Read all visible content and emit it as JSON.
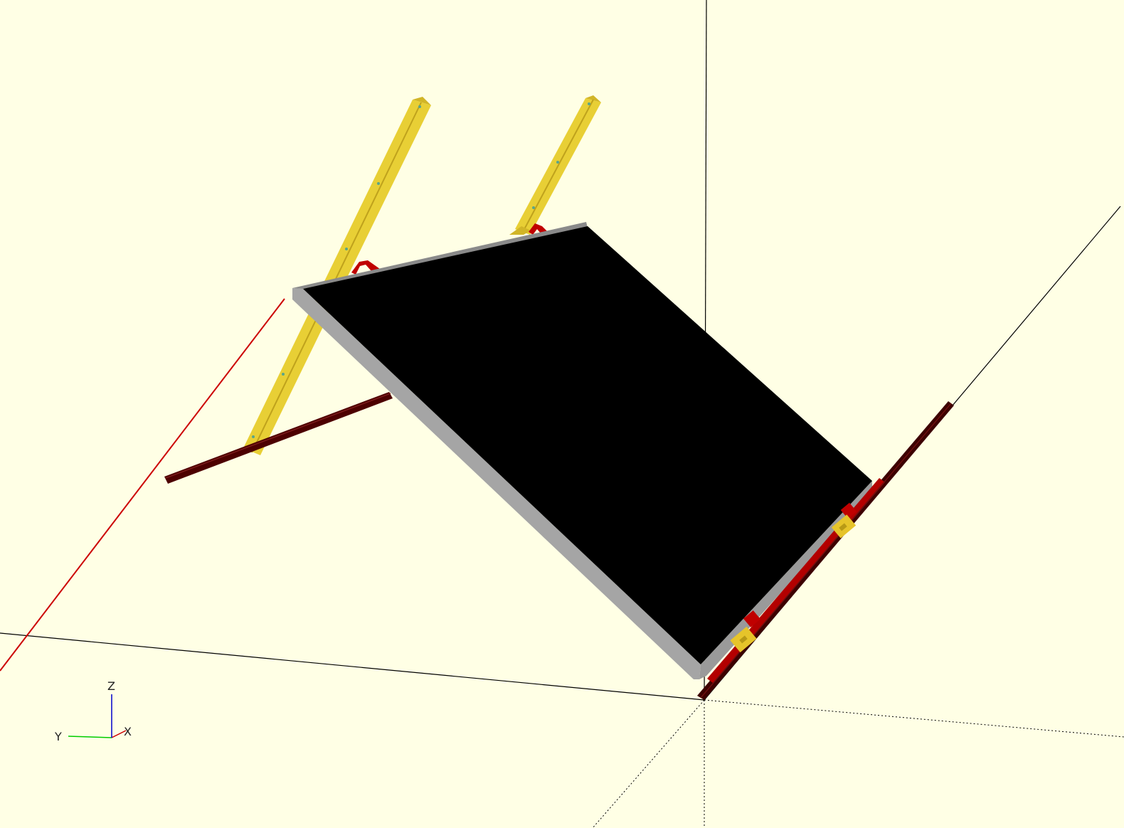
{
  "viewport": {
    "background": "#ffffe5",
    "colors": {
      "axis_x": "#cc0000",
      "axis_main": "#000000",
      "panel_top": "#000000",
      "panel_edge": "#a8a8a8",
      "strut": "#e6cc33",
      "strut_shade": "#c9ae22",
      "rod": "#4d0000",
      "bracket": "#c00000",
      "gizmo_x": "#cc0000",
      "gizmo_y": "#00cc00",
      "gizmo_z": "#0000cc"
    }
  },
  "gizmo": {
    "x_label": "X",
    "y_label": "Y",
    "z_label": "Z"
  }
}
